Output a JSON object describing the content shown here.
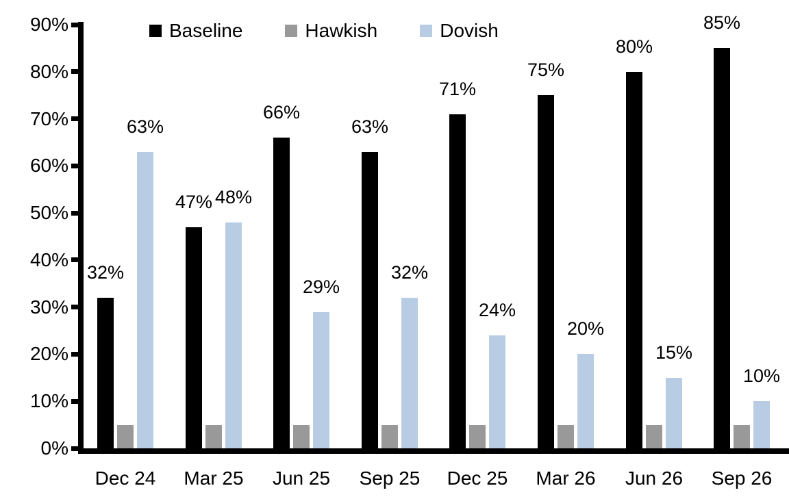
{
  "chart_data": {
    "type": "bar",
    "title": "",
    "xlabel": "",
    "ylabel": "",
    "categories": [
      "Dec 24",
      "Mar 25",
      "Jun 25",
      "Sep 25",
      "Dec 25",
      "Mar 26",
      "Jun 26",
      "Sep 26"
    ],
    "series": [
      {
        "name": "Baseline",
        "color": "#000000",
        "values": [
          32,
          47,
          66,
          63,
          71,
          75,
          80,
          85
        ],
        "labels": [
          "32%",
          "47%",
          "66%",
          "63%",
          "71%",
          "75%",
          "80%",
          "85%"
        ],
        "show_labels": true
      },
      {
        "name": "Hawkish",
        "color": "#999999",
        "values": [
          5,
          5,
          5,
          5,
          5,
          5,
          5,
          5
        ],
        "labels": [],
        "show_labels": false
      },
      {
        "name": "Dovish",
        "color": "#B8CCE4",
        "values": [
          63,
          48,
          29,
          32,
          24,
          20,
          15,
          10
        ],
        "labels": [
          "63%",
          "48%",
          "29%",
          "32%",
          "24%",
          "20%",
          "15%",
          "10%"
        ],
        "show_labels": true
      }
    ],
    "y_ticks": [
      "90%",
      "80%",
      "70%",
      "60%",
      "50%",
      "40%",
      "30%",
      "20%",
      "10%",
      "0%"
    ],
    "ylim": [
      0,
      90
    ],
    "y_tick_step": 10,
    "legend_position": "top",
    "grid": false,
    "axis_color": "#000000",
    "background_color": "#ffffff",
    "label_format": "percent"
  }
}
